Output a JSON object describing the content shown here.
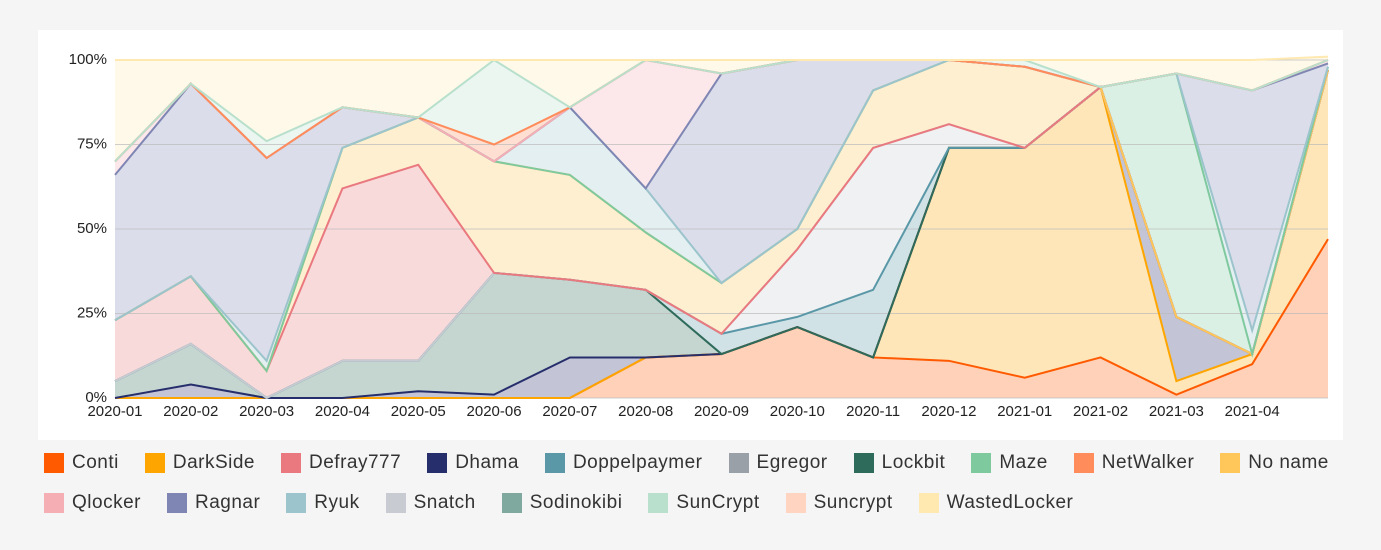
{
  "chart_data": {
    "type": "stacked_area_percent",
    "categories": [
      "2020-01",
      "2020-02",
      "2020-03",
      "2020-04",
      "2020-05",
      "2020-06",
      "2020-07",
      "2020-08",
      "2020-09",
      "2020-10",
      "2020-11",
      "2020-12",
      "2021-01",
      "2021-02",
      "2021-03",
      "2021-04",
      null
    ],
    "ylim": [
      0,
      100
    ],
    "yticks": [
      {
        "value": 0,
        "label": "0%"
      },
      {
        "value": 25,
        "label": "25%"
      },
      {
        "value": 50,
        "label": "50%"
      },
      {
        "value": 75,
        "label": "75%"
      },
      {
        "value": 100,
        "label": "100%"
      }
    ],
    "grid": true,
    "legend": "bottom",
    "series": [
      {
        "name": "Conti",
        "color": "#ff5a00",
        "values": [
          0,
          0,
          0,
          0,
          0,
          0,
          0,
          12,
          13,
          21,
          12,
          11,
          6,
          12,
          1,
          10,
          47
        ]
      },
      {
        "name": "DarkSide",
        "color": "#ffa500",
        "values": [
          0,
          0,
          0,
          0,
          0,
          0,
          0,
          0,
          0,
          0,
          0,
          63,
          68,
          80,
          4,
          3,
          50
        ]
      },
      {
        "name": "Defray777",
        "color": "#e9797e",
        "values": [
          18,
          20,
          8,
          51,
          58,
          0,
          0,
          0,
          0,
          0,
          0,
          0,
          0,
          0,
          0,
          0,
          0
        ]
      },
      {
        "name": "Dhama",
        "color": "#262f6b",
        "values": [
          0,
          4,
          0,
          0,
          2,
          1,
          12,
          0,
          0,
          0,
          0,
          0,
          0,
          0,
          19,
          0,
          0
        ]
      },
      {
        "name": "Doppelpaymer",
        "color": "#5a98a8",
        "values": [
          0,
          0,
          0,
          0,
          0,
          0,
          0,
          0,
          6,
          3,
          20,
          0,
          0,
          0,
          0,
          0,
          0
        ]
      },
      {
        "name": "Egregor",
        "color": "#9aa0a8",
        "values": [
          0,
          0,
          0,
          0,
          0,
          0,
          0,
          0,
          0,
          0,
          0,
          0,
          0,
          0,
          0,
          0,
          0
        ]
      },
      {
        "name": "Lockbit",
        "color": "#2f6b5a",
        "values": [
          5,
          12,
          0,
          11,
          9,
          36,
          23,
          20,
          0,
          0,
          0,
          0,
          0,
          0,
          0,
          0,
          0
        ]
      },
      {
        "name": "Maze",
        "color": "#7fc99f",
        "values": [
          0,
          0,
          0,
          0,
          0,
          0,
          0,
          0,
          0,
          0,
          0,
          0,
          0,
          0,
          72,
          0,
          1
        ]
      },
      {
        "name": "NetWalker",
        "color": "#ff8c5a",
        "values": [
          0,
          0,
          0,
          0,
          0,
          5,
          0,
          0,
          0,
          0,
          0,
          0,
          0,
          0,
          0,
          0,
          0
        ]
      },
      {
        "name": "No name",
        "color": "#ffc65a",
        "values": [
          0,
          0,
          0,
          12,
          14,
          33,
          31,
          17,
          15,
          6,
          17,
          19,
          24,
          0,
          0,
          0,
          0
        ]
      },
      {
        "name": "Qlocker",
        "color": "#f4aeb4",
        "values": [
          4,
          0,
          0,
          0,
          0,
          0,
          0,
          38,
          0,
          0,
          0,
          0,
          0,
          0,
          0,
          0,
          1
        ]
      },
      {
        "name": "Ragnar",
        "color": "#7f86b3",
        "values": [
          43,
          57,
          60,
          12,
          0,
          0,
          0,
          0,
          62,
          50,
          9,
          0,
          0,
          0,
          0,
          71,
          1
        ]
      },
      {
        "name": "Ryuk",
        "color": "#9cc4cc",
        "values": [
          0,
          0,
          3,
          0,
          0,
          0,
          20,
          13,
          0,
          0,
          0,
          0,
          0,
          0,
          0,
          7,
          0
        ]
      },
      {
        "name": "Snatch",
        "color": "#c8ccd2",
        "values": [
          0,
          0,
          0,
          0,
          0,
          0,
          0,
          0,
          0,
          20,
          42,
          7,
          0,
          0,
          0,
          0,
          0
        ]
      },
      {
        "name": "Sodinokibi",
        "color": "#7fa89e",
        "values": [
          0,
          0,
          0,
          0,
          0,
          0,
          0,
          0,
          0,
          0,
          0,
          0,
          0,
          0,
          0,
          0,
          0
        ]
      },
      {
        "name": "SunCrypt",
        "color": "#b8e0cc",
        "values": [
          0,
          0,
          5,
          0,
          0,
          25,
          0,
          0,
          0,
          0,
          0,
          0,
          2,
          0,
          0,
          0,
          0
        ]
      },
      {
        "name": "Suncrypt",
        "color": "#ffd4c0",
        "values": [
          0,
          0,
          0,
          0,
          0,
          0,
          0,
          0,
          0,
          0,
          0,
          0,
          0,
          0,
          0,
          0,
          0
        ]
      },
      {
        "name": "WastedLocker",
        "color": "#ffe9b0",
        "values": [
          30,
          7,
          24,
          14,
          17,
          0,
          14,
          0,
          4,
          0,
          0,
          0,
          0,
          8,
          4,
          9,
          1
        ]
      }
    ]
  }
}
